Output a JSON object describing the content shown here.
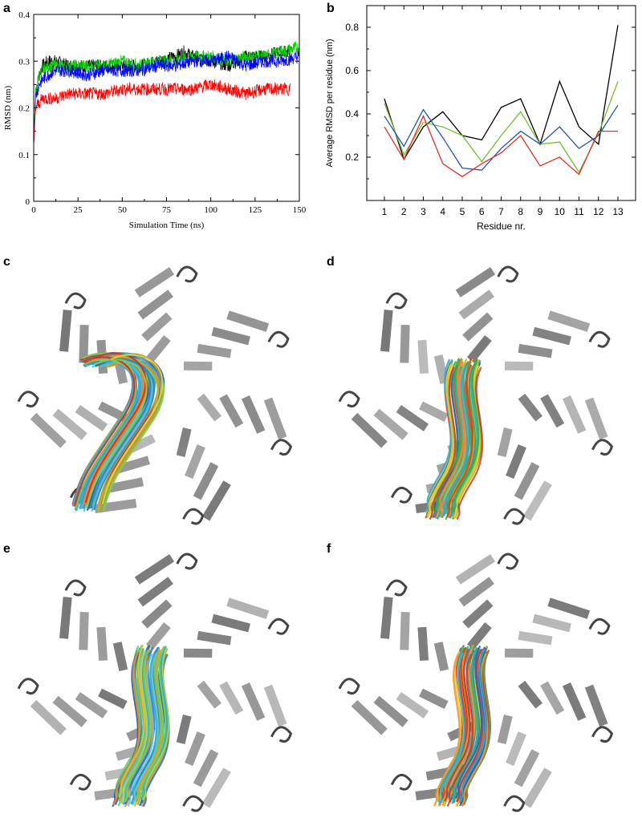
{
  "panels": {
    "a": "a",
    "b": "b",
    "c": "c",
    "d": "d",
    "e": "e",
    "f": "f"
  },
  "chart_data": [
    {
      "type": "line",
      "panel": "a",
      "xlabel": "Simulation Time (ns)",
      "ylabel": "RMSD (nm)",
      "xlim": [
        0,
        150
      ],
      "ylim": [
        0,
        0.4
      ],
      "xticks": [
        0,
        25,
        50,
        75,
        100,
        125,
        150
      ],
      "yticks": [
        0,
        0.1,
        0.2,
        0.3,
        0.4
      ],
      "ytick_labels": [
        "0",
        "0.1",
        "0.2",
        "0.3",
        "0.4"
      ],
      "grid": false,
      "series": [
        {
          "color": "#000000",
          "x": [
            0,
            1,
            3,
            5,
            8,
            12,
            20,
            30,
            40,
            50,
            60,
            70,
            80,
            85,
            90,
            100,
            110,
            120,
            130,
            140,
            145
          ],
          "values": [
            0.12,
            0.23,
            0.27,
            0.29,
            0.3,
            0.3,
            0.29,
            0.29,
            0.29,
            0.29,
            0.29,
            0.3,
            0.31,
            0.32,
            0.31,
            0.3,
            0.29,
            0.31,
            0.31,
            0.32,
            0.32
          ]
        },
        {
          "color": "#00cc00",
          "x": [
            0,
            1,
            3,
            5,
            8,
            12,
            20,
            30,
            40,
            50,
            60,
            70,
            80,
            90,
            100,
            110,
            120,
            130,
            140,
            150
          ],
          "values": [
            0.12,
            0.23,
            0.27,
            0.28,
            0.29,
            0.29,
            0.29,
            0.29,
            0.29,
            0.3,
            0.29,
            0.3,
            0.3,
            0.31,
            0.31,
            0.3,
            0.31,
            0.31,
            0.32,
            0.33
          ]
        },
        {
          "color": "#0000ff",
          "x": [
            0,
            1,
            3,
            5,
            8,
            12,
            20,
            30,
            40,
            50,
            60,
            70,
            80,
            90,
            100,
            110,
            120,
            130,
            140,
            150
          ],
          "values": [
            0.12,
            0.22,
            0.25,
            0.26,
            0.27,
            0.28,
            0.28,
            0.27,
            0.28,
            0.28,
            0.28,
            0.29,
            0.29,
            0.3,
            0.3,
            0.31,
            0.29,
            0.3,
            0.3,
            0.31
          ]
        },
        {
          "color": "#ff0000",
          "x": [
            0,
            1,
            3,
            5,
            8,
            12,
            20,
            30,
            40,
            50,
            60,
            70,
            80,
            90,
            100,
            110,
            120,
            130,
            140,
            145
          ],
          "values": [
            0.12,
            0.2,
            0.21,
            0.22,
            0.22,
            0.22,
            0.23,
            0.23,
            0.23,
            0.24,
            0.24,
            0.24,
            0.24,
            0.24,
            0.25,
            0.24,
            0.23,
            0.24,
            0.24,
            0.24
          ]
        }
      ]
    },
    {
      "type": "line",
      "panel": "b",
      "xlabel": "Residue nr.",
      "ylabel": "Average RMSD per residue (nm)",
      "categories": [
        "1",
        "2",
        "3",
        "4",
        "5",
        "6",
        "7",
        "8",
        "9",
        "10",
        "11",
        "12",
        "13"
      ],
      "ylim": [
        0,
        0.9
      ],
      "yticks": [
        0.2,
        0.4,
        0.6,
        0.8
      ],
      "grid": false,
      "series": [
        {
          "color": "#000000",
          "values": [
            0.47,
            0.19,
            0.34,
            0.41,
            0.3,
            0.28,
            0.43,
            0.47,
            0.26,
            0.55,
            0.34,
            0.26,
            0.81
          ]
        },
        {
          "color": "#77bb33",
          "values": [
            0.45,
            0.21,
            0.36,
            0.34,
            0.3,
            0.18,
            0.3,
            0.41,
            0.26,
            0.27,
            0.13,
            0.31,
            0.55
          ]
        },
        {
          "color": "#2255aa",
          "values": [
            0.39,
            0.25,
            0.42,
            0.29,
            0.15,
            0.14,
            0.24,
            0.32,
            0.26,
            0.34,
            0.24,
            0.3,
            0.44
          ]
        },
        {
          "color": "#dd3322",
          "values": [
            0.34,
            0.19,
            0.39,
            0.17,
            0.11,
            0.17,
            0.22,
            0.3,
            0.16,
            0.2,
            0.12,
            0.32,
            0.32
          ]
        }
      ]
    }
  ]
}
